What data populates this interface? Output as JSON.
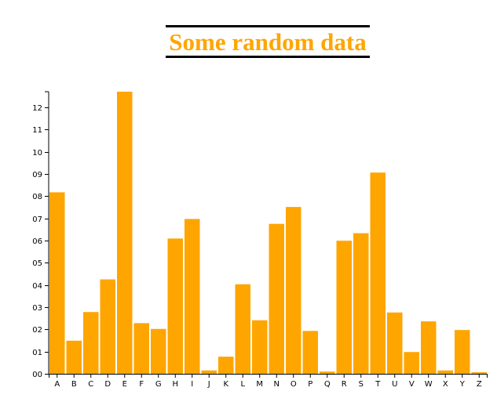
{
  "colors": {
    "bar": "#FFA500",
    "title": "#FFA500",
    "axis": "#000000"
  },
  "chart_data": {
    "type": "bar",
    "title": "Some random data",
    "xlabel": "",
    "ylabel": "",
    "categories": [
      "A",
      "B",
      "C",
      "D",
      "E",
      "F",
      "G",
      "H",
      "I",
      "J",
      "K",
      "L",
      "M",
      "N",
      "O",
      "P",
      "Q",
      "R",
      "S",
      "T",
      "U",
      "V",
      "W",
      "X",
      "Y",
      "Z"
    ],
    "values": [
      8.17,
      1.49,
      2.78,
      4.25,
      12.7,
      2.28,
      2.02,
      6.09,
      6.97,
      0.15,
      0.77,
      4.03,
      2.41,
      6.75,
      7.51,
      1.93,
      0.1,
      5.99,
      6.33,
      9.06,
      2.76,
      0.98,
      2.36,
      0.15,
      1.97,
      0.07
    ],
    "ylim": [
      0,
      12.7
    ],
    "yticks": [
      0,
      1,
      2,
      3,
      4,
      5,
      6,
      7,
      8,
      9,
      10,
      11,
      12
    ],
    "ytick_labels": [
      "00",
      "01",
      "02",
      "03",
      "04",
      "05",
      "06",
      "07",
      "08",
      "09",
      "10",
      "11",
      "12"
    ],
    "grid": false,
    "legend": "none"
  }
}
